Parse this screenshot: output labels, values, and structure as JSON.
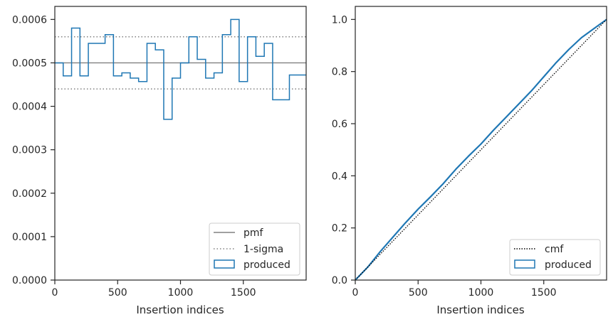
{
  "colors": {
    "hist": "#1f77b4",
    "pmf": "#808080",
    "sigma": "#808080",
    "cmf": "#000000",
    "spine": "#262626",
    "text": "#262626"
  },
  "chart_data": [
    {
      "type": "histogram",
      "xlabel": "Insertion indices",
      "ylabel": "",
      "xlim": [
        0,
        2000
      ],
      "ylim": [
        0,
        0.00063
      ],
      "xticks": [
        0,
        500,
        1000,
        1500
      ],
      "xtick_labels": [
        "0",
        "500",
        "1000",
        "1500"
      ],
      "yticks": [
        0,
        0.0001,
        0.0002,
        0.0003,
        0.0004,
        0.0005,
        0.0006
      ],
      "ytick_labels": [
        "0.0000",
        "0.0001",
        "0.0002",
        "0.0003",
        "0.0004",
        "0.0005",
        "0.0006"
      ],
      "bin_width": 66.67,
      "hist_values": [
        0.0005,
        0.00047,
        0.00058,
        0.00047,
        0.000545,
        0.000545,
        0.000565,
        0.00047,
        0.000477,
        0.000465,
        0.000457,
        0.000545,
        0.00053,
        0.00037,
        0.000465,
        0.0005,
        0.00056,
        0.000508,
        0.000465,
        0.000477,
        0.000565,
        0.0006,
        0.000457,
        0.00056,
        0.000515,
        0.000545,
        0.000415,
        0.000415,
        0.000472,
        0.000472
      ],
      "pmf": 0.0005,
      "sigma_band": [
        0.00044,
        0.00056
      ],
      "legend": {
        "position": "lower right",
        "entries": [
          "pmf",
          "1-sigma",
          "produced"
        ]
      },
      "grid": false
    },
    {
      "type": "line",
      "xlabel": "Insertion indices",
      "ylabel": "",
      "xlim": [
        0,
        2000
      ],
      "ylim": [
        0,
        1.05
      ],
      "xticks": [
        0,
        500,
        1000,
        1500
      ],
      "xtick_labels": [
        "0",
        "500",
        "1000",
        "1500"
      ],
      "yticks": [
        0,
        0.2,
        0.4,
        0.6,
        0.8,
        1.0
      ],
      "ytick_labels": [
        "0.0",
        "0.2",
        "0.4",
        "0.6",
        "0.8",
        "1.0"
      ],
      "cmf": {
        "x": [
          0,
          2000
        ],
        "y": [
          0,
          1.0
        ]
      },
      "produced_cdf": {
        "x": [
          0,
          100,
          200,
          300,
          400,
          500,
          600,
          700,
          800,
          900,
          1000,
          1100,
          1200,
          1300,
          1400,
          1500,
          1600,
          1700,
          1800,
          1900,
          2000
        ],
        "y": [
          0,
          0.05,
          0.11,
          0.165,
          0.22,
          0.272,
          0.32,
          0.37,
          0.425,
          0.475,
          0.522,
          0.575,
          0.625,
          0.675,
          0.725,
          0.78,
          0.835,
          0.885,
          0.93,
          0.965,
          1.0
        ]
      },
      "legend": {
        "position": "lower right",
        "entries": [
          "cmf",
          "produced"
        ]
      },
      "grid": false
    }
  ]
}
